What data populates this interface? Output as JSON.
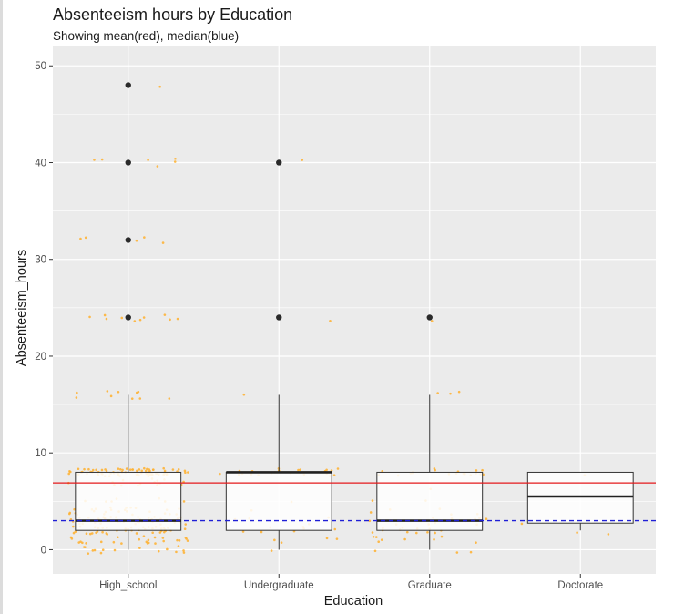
{
  "chart_data": {
    "type": "box",
    "title": "Absenteeism hours by Education",
    "subtitle": "Showing mean(red), median(blue)",
    "xlabel": "Education",
    "ylabel": "Absenteeism_hours",
    "categories": [
      "High_school",
      "Undergraduate",
      "Graduate",
      "Doctorate"
    ],
    "ylim": [
      -2.5,
      52
    ],
    "yticks": [
      0,
      10,
      20,
      30,
      40,
      50
    ],
    "grid": true,
    "boxes": [
      {
        "category": "High_school",
        "q1": 2,
        "median": 3,
        "q3": 8,
        "whisker_low": 0,
        "whisker_high": 16,
        "outliers": [
          24,
          32,
          40,
          48
        ]
      },
      {
        "category": "Undergraduate",
        "q1": 2,
        "median": 8,
        "q3": 8,
        "whisker_low": 0,
        "whisker_high": 16,
        "outliers": [
          24,
          40
        ]
      },
      {
        "category": "Graduate",
        "q1": 2,
        "median": 3,
        "q3": 8,
        "whisker_low": 0,
        "whisker_high": 16,
        "outliers": [
          24
        ]
      },
      {
        "category": "Doctorate",
        "q1": 2.75,
        "median": 5.5,
        "q3": 8,
        "whisker_low": 2,
        "whisker_high": 8,
        "outliers": []
      }
    ],
    "reference_lines": [
      {
        "label": "mean",
        "value": 6.9,
        "color": "#e41a1c",
        "style": "solid"
      },
      {
        "label": "median",
        "value": 3,
        "color": "#1f1fd6",
        "style": "dashed"
      }
    ],
    "jitter_color": "#ffb02e",
    "jitter_points": [
      {
        "category": "High_school",
        "values": [
          8,
          8,
          8,
          8,
          8,
          8,
          8,
          8,
          8,
          8,
          8,
          8,
          8,
          8,
          8,
          8,
          8,
          8,
          8,
          8,
          8,
          8,
          8,
          8,
          8,
          8,
          8,
          8,
          8,
          8,
          8,
          8,
          8,
          8,
          8,
          8,
          8,
          8,
          8,
          8,
          8,
          8,
          8,
          8,
          8,
          8,
          8,
          8,
          8,
          8,
          8,
          8,
          8,
          8,
          8,
          8,
          8,
          8,
          8,
          8,
          8,
          8,
          8,
          8,
          8,
          8,
          8,
          8,
          8,
          8,
          8,
          8,
          8,
          8,
          8,
          8,
          8,
          8,
          8,
          8,
          3,
          3,
          3,
          3,
          3,
          3,
          3,
          3,
          3,
          3,
          3,
          3,
          3,
          3,
          3,
          3,
          3,
          3,
          3,
          3,
          3,
          3,
          3,
          3,
          3,
          3,
          3,
          3,
          3,
          3,
          3,
          3,
          3,
          3,
          3,
          3,
          3,
          3,
          3,
          3,
          2,
          2,
          2,
          2,
          2,
          2,
          2,
          2,
          2,
          2,
          2,
          2,
          2,
          2,
          2,
          2,
          2,
          2,
          2,
          2,
          2,
          2,
          2,
          2,
          2,
          2,
          2,
          2,
          2,
          2,
          2,
          2,
          2,
          2,
          2,
          2,
          2,
          2,
          2,
          2,
          1,
          1,
          1,
          1,
          1,
          1,
          1,
          1,
          1,
          1,
          1,
          1,
          1,
          1,
          1,
          1,
          1,
          1,
          1,
          1,
          1,
          1,
          1,
          1,
          1,
          4,
          4,
          4,
          4,
          4,
          4,
          4,
          4,
          4,
          4,
          4,
          4,
          4,
          4,
          4,
          4,
          4,
          4,
          4,
          4,
          4,
          4,
          4,
          4,
          4,
          5,
          5,
          5,
          5,
          5,
          5,
          5,
          0,
          0,
          0,
          0,
          0,
          0,
          0,
          0,
          0,
          0,
          0,
          0,
          0,
          0,
          0,
          7,
          7,
          7,
          7,
          7,
          7,
          7,
          7,
          7,
          7,
          7,
          7,
          7,
          7,
          7,
          16,
          16,
          16,
          16,
          16,
          16,
          16,
          16,
          16,
          16,
          24,
          24,
          24,
          24,
          24,
          24,
          24,
          24,
          24,
          24,
          32,
          32,
          32,
          32,
          32,
          40,
          40,
          40,
          40,
          40,
          40,
          48
        ]
      },
      {
        "category": "Undergraduate",
        "values": [
          8,
          8,
          8,
          8,
          8,
          8,
          8,
          8,
          8,
          8,
          8,
          8,
          8,
          8,
          8,
          8,
          8,
          8,
          8,
          8,
          8,
          8,
          2,
          2,
          2,
          2,
          2,
          2,
          2,
          1,
          1,
          1,
          1,
          3,
          3,
          3,
          3,
          4,
          5,
          7,
          0,
          16,
          24,
          40
        ]
      },
      {
        "category": "Graduate",
        "values": [
          8,
          8,
          8,
          8,
          8,
          8,
          8,
          8,
          8,
          8,
          8,
          8,
          8,
          8,
          8,
          8,
          8,
          8,
          3,
          3,
          3,
          3,
          3,
          3,
          3,
          3,
          3,
          3,
          3,
          3,
          2,
          2,
          2,
          2,
          2,
          2,
          2,
          2,
          2,
          2,
          2,
          2,
          1,
          1,
          1,
          1,
          1,
          1,
          1,
          1,
          4,
          4,
          4,
          4,
          4,
          5,
          5,
          6,
          0,
          0,
          0,
          16,
          16,
          16,
          24
        ]
      },
      {
        "category": "Doctorate",
        "values": [
          8,
          3,
          2,
          2
        ]
      }
    ]
  }
}
